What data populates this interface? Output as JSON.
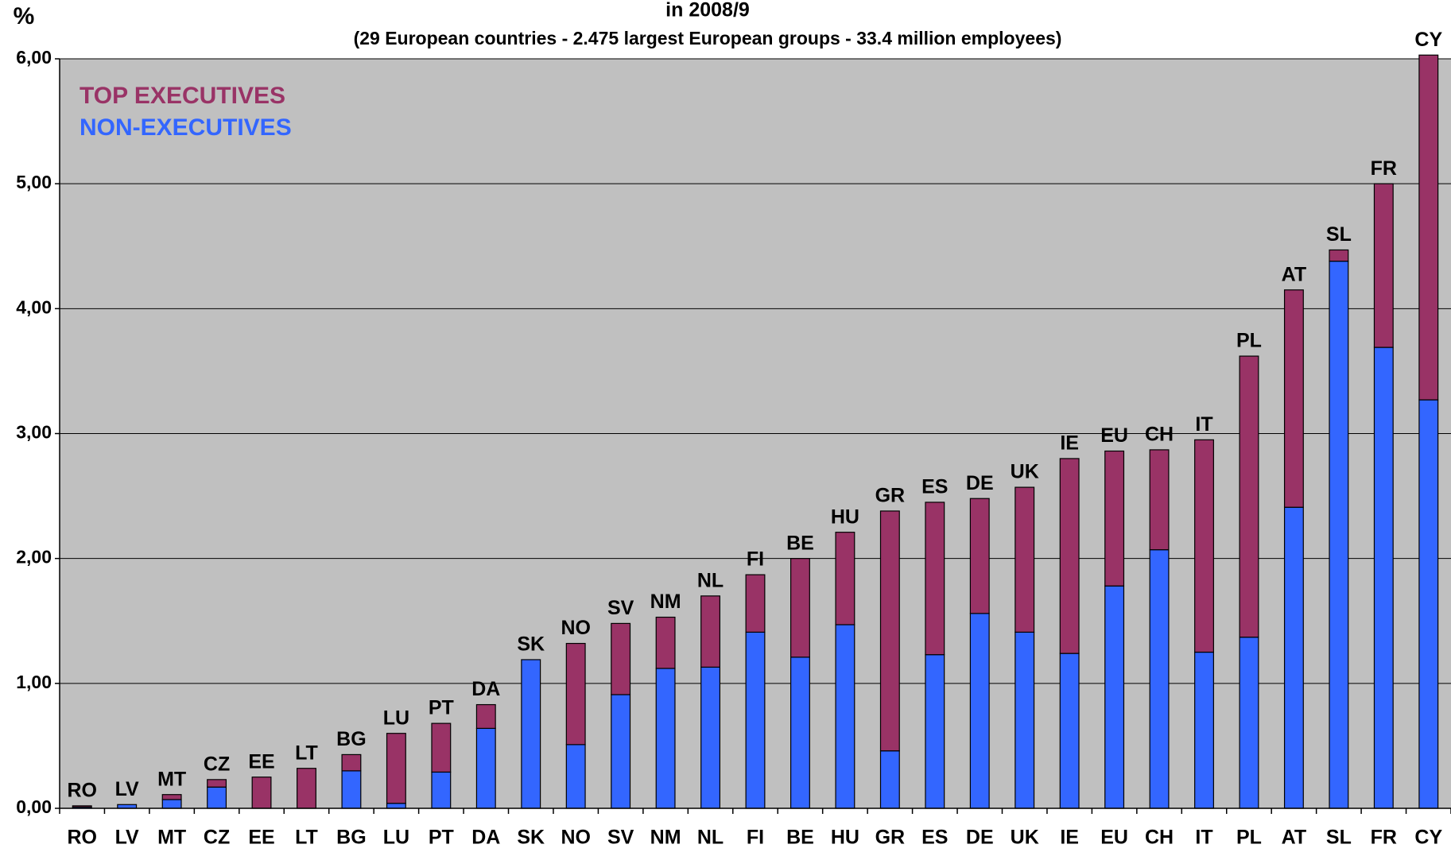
{
  "chart_data": {
    "type": "stacked_bar",
    "title": "in 2008/9",
    "subtitle": "(29 European countries - 2.475 largest European groups - 33.4 million employees)",
    "y_label": "%",
    "categories": [
      "RO",
      "LV",
      "MT",
      "CZ",
      "EE",
      "LT",
      "BG",
      "LU",
      "PT",
      "DA",
      "SK",
      "NO",
      "SV",
      "NM",
      "NL",
      "FI",
      "BE",
      "HU",
      "GR",
      "ES",
      "DE",
      "UK",
      "IE",
      "EU",
      "CH",
      "IT",
      "PL",
      "AT",
      "SL",
      "FR",
      "CY"
    ],
    "series": [
      {
        "name": "NON-EXECUTIVES",
        "color": "#3366ff",
        "values": [
          0.01,
          0.03,
          0.07,
          0.17,
          0,
          0,
          0.3,
          0.04,
          0.29,
          0.64,
          1.19,
          0.51,
          0.91,
          1.12,
          1.13,
          1.41,
          1.21,
          1.47,
          0.46,
          1.23,
          1.56,
          1.41,
          1.24,
          1.78,
          2.07,
          1.25,
          1.37,
          2.41,
          4.38,
          3.69,
          3.27
        ]
      },
      {
        "name": "TOP EXECUTIVES",
        "color": "#993366",
        "values": [
          0.01,
          0,
          0.04,
          0.06,
          0.25,
          0.32,
          0.13,
          0.56,
          0.39,
          0.19,
          0,
          0.81,
          0.57,
          0.41,
          0.57,
          0.46,
          0.79,
          0.74,
          1.92,
          1.22,
          0.92,
          1.16,
          1.56,
          1.08,
          0.8,
          1.7,
          2.25,
          1.74,
          0.09,
          1.31,
          2.76
        ]
      }
    ],
    "ylim": [
      0,
      6
    ],
    "yticks": [
      {
        "value": 0,
        "label": "0,00"
      },
      {
        "value": 1,
        "label": "1,00"
      },
      {
        "value": 2,
        "label": "2,00"
      },
      {
        "value": 3,
        "label": "3,00"
      },
      {
        "value": 4,
        "label": "4,00"
      },
      {
        "value": 5,
        "label": "5,00"
      },
      {
        "value": 6,
        "label": "6,00"
      }
    ],
    "grid": true,
    "plot_background": "#c0c0c0"
  }
}
